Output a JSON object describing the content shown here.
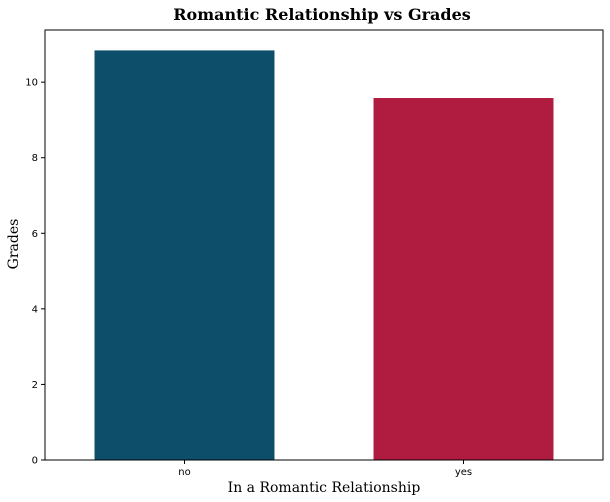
{
  "chart_data": {
    "type": "bar",
    "title": "Romantic Relationship vs Grades",
    "xlabel": "In a Romantic Relationship",
    "ylabel": "Grades",
    "categories": [
      "no",
      "yes"
    ],
    "values": [
      10.84,
      9.58
    ],
    "colors": [
      "#0d4f6b",
      "#b01c3f"
    ],
    "ylim": [
      0,
      11.38
    ],
    "yticks": [
      0,
      2,
      4,
      6,
      8,
      10
    ],
    "grid": false,
    "legend": "none"
  }
}
